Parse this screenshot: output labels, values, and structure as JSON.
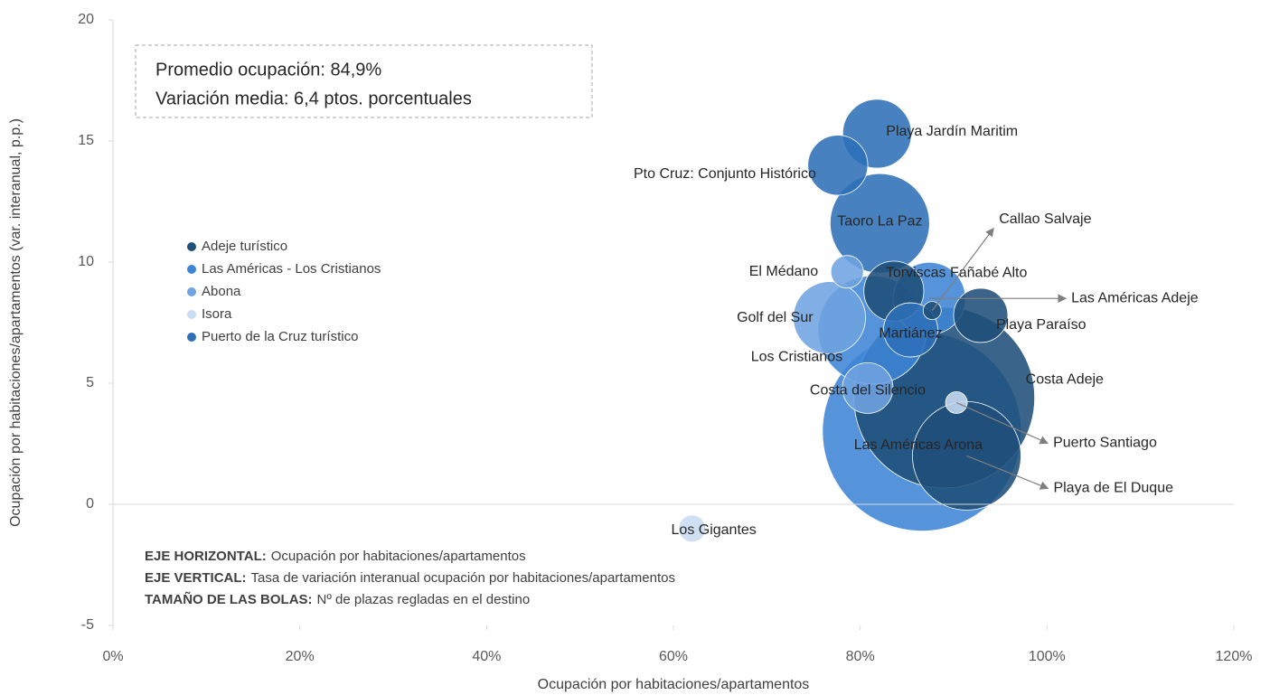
{
  "chart_data": {
    "type": "bubble",
    "x_label": "Ocupación por habitaciones/apartamentos",
    "y_label": "Ocupación por habitaciones/apartamentos (var. interanual, p.p.)",
    "xlim": [
      0,
      120
    ],
    "xticks": [
      {
        "value": 0,
        "label": "0%"
      },
      {
        "value": 20,
        "label": "20%"
      },
      {
        "value": 40,
        "label": "40%"
      },
      {
        "value": 60,
        "label": "60%"
      },
      {
        "value": 80,
        "label": "80%"
      },
      {
        "value": 100,
        "label": "100%"
      },
      {
        "value": 120,
        "label": "120%"
      }
    ],
    "ylim": [
      -5,
      20
    ],
    "yticks": [
      -5,
      0,
      5,
      10,
      15,
      20
    ],
    "grid": false,
    "legend": "left",
    "series": [
      {
        "name": "Adeje turístico",
        "color": "#1f4e79",
        "labels": [
          "Torviscas Fañabé Alto",
          "Playa Paraíso",
          "Costa Adeje",
          "Playa de El Duque",
          "Callao Salvaje"
        ],
        "x": [
          83.6,
          92.9,
          89.0,
          91.4,
          87.7
        ],
        "values": [
          8.8,
          7.8,
          4.4,
          2.0,
          8.0
        ],
        "sizes": [
          2200,
          1800,
          20000,
          7200,
          200
        ]
      },
      {
        "name": "Las Américas - Los Cristianos",
        "color": "#3d85d6",
        "labels": [
          "Las Américas Arona",
          "Los Cristianos",
          "Las Américas Adeje"
        ],
        "x": [
          86.6,
          81.3,
          87.4
        ],
        "values": [
          3.0,
          7.2,
          8.5
        ],
        "sizes": [
          24200,
          7200,
          3200
        ]
      },
      {
        "name": "Abona",
        "color": "#6fa3e0",
        "labels": [
          "El Médano",
          "Golf del Sur",
          "Costa del Silencio"
        ],
        "x": [
          78.6,
          76.7,
          80.8
        ],
        "values": [
          9.6,
          7.7,
          4.8
        ],
        "sizes": [
          650,
          3200,
          1570
        ]
      },
      {
        "name": "Isora",
        "color": "#c9dcf3",
        "labels": [
          "Los Gigantes",
          "Puerto Santiago"
        ],
        "x": [
          62.0,
          90.3
        ],
        "values": [
          -1.0,
          4.2
        ],
        "sizes": [
          450,
          290
        ]
      },
      {
        "name": "Puerto de la Cruz turístico",
        "color": "#2e6fb7",
        "labels": [
          "Playa Jardín Maritim",
          "Pto Cruz: Conjunto Histórico",
          "Taoro La Paz",
          "Martiánez"
        ],
        "x": [
          81.8,
          77.6,
          82.1,
          85.4
        ],
        "values": [
          15.3,
          14.0,
          11.6,
          7.2
        ],
        "sizes": [
          2900,
          2200,
          6050,
          1800
        ]
      }
    ],
    "summary": [
      "Promedio ocupación: 84,9%",
      "Variación media: 6,4 ptos. porcentuales"
    ],
    "notes": [
      {
        "bold": "EJE HORIZONTAL:",
        "text": "Ocupación por habitaciones/apartamentos"
      },
      {
        "bold": "EJE VERTICAL:",
        "text": "Tasa de variación interanual ocupación por habitaciones/apartamentos"
      },
      {
        "bold": "TAMAÑO DE LAS BOLAS:",
        "text": "Nº de plazas regladas en el destino"
      }
    ]
  }
}
